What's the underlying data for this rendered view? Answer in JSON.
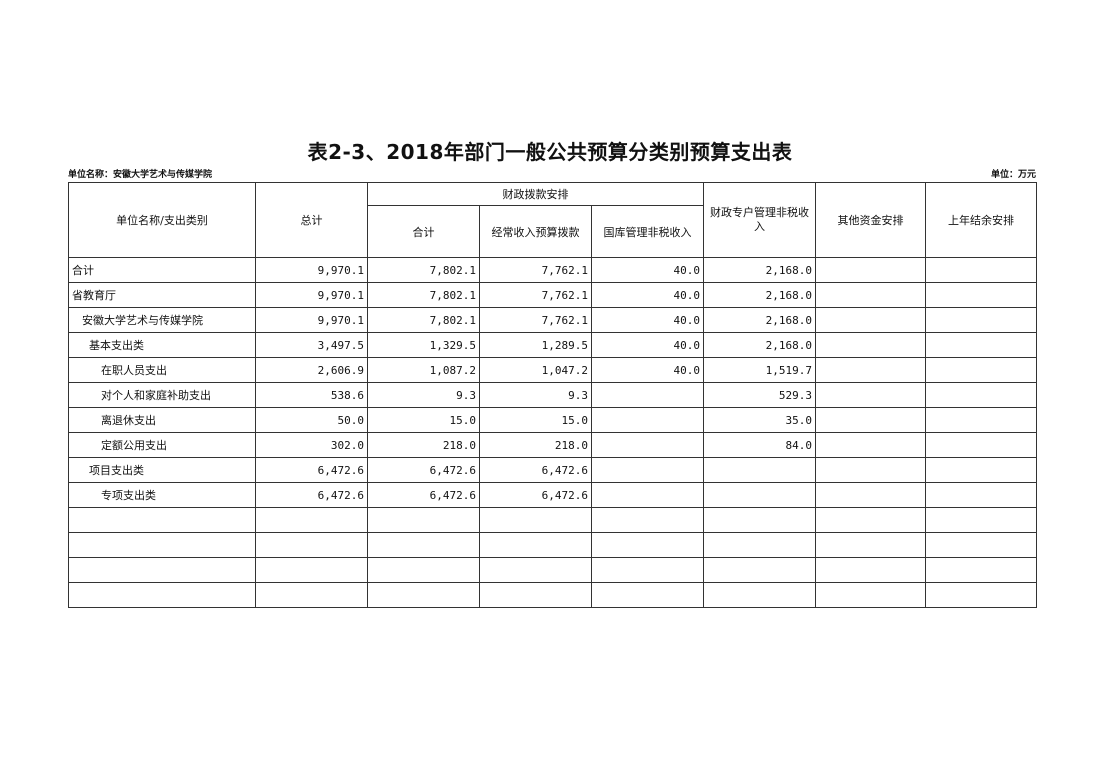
{
  "title": "表2-3、2018年部门一般公共预算分类别预算支出表",
  "unit_name": "单位名称：安徽大学艺术与传媒学院",
  "unit": "单位：万元",
  "headers": {
    "category": "单位名称/支出类别",
    "total": "总计",
    "fiscal_group": "财政拨款安排",
    "fiscal_subtotal": "合计",
    "regular_income": "经常收入预算拨款",
    "treasury_nontax": "国库管理非税收入",
    "special_nontax": "财政专户管理非税收入",
    "other_funds": "其他资金安排",
    "prior_year": "上年结余安排"
  },
  "rows": [
    {
      "name": "合计",
      "level": 0,
      "total": "9,970.1",
      "subtotal": "7,802.1",
      "regular": "7,762.1",
      "treasury": "40.0",
      "special": "2,168.0",
      "other": "",
      "prior": ""
    },
    {
      "name": "省教育厅",
      "level": 0,
      "total": "9,970.1",
      "subtotal": "7,802.1",
      "regular": "7,762.1",
      "treasury": "40.0",
      "special": "2,168.0",
      "other": "",
      "prior": ""
    },
    {
      "name": "安徽大学艺术与传媒学院",
      "level": 1,
      "total": "9,970.1",
      "subtotal": "7,802.1",
      "regular": "7,762.1",
      "treasury": "40.0",
      "special": "2,168.0",
      "other": "",
      "prior": ""
    },
    {
      "name": "基本支出类",
      "level": 2,
      "total": "3,497.5",
      "subtotal": "1,329.5",
      "regular": "1,289.5",
      "treasury": "40.0",
      "special": "2,168.0",
      "other": "",
      "prior": ""
    },
    {
      "name": "在职人员支出",
      "level": 3,
      "total": "2,606.9",
      "subtotal": "1,087.2",
      "regular": "1,047.2",
      "treasury": "40.0",
      "special": "1,519.7",
      "other": "",
      "prior": ""
    },
    {
      "name": "对个人和家庭补助支出",
      "level": 3,
      "total": "538.6",
      "subtotal": "9.3",
      "regular": "9.3",
      "treasury": "",
      "special": "529.3",
      "other": "",
      "prior": ""
    },
    {
      "name": "离退休支出",
      "level": 3,
      "total": "50.0",
      "subtotal": "15.0",
      "regular": "15.0",
      "treasury": "",
      "special": "35.0",
      "other": "",
      "prior": ""
    },
    {
      "name": "定额公用支出",
      "level": 3,
      "total": "302.0",
      "subtotal": "218.0",
      "regular": "218.0",
      "treasury": "",
      "special": "84.0",
      "other": "",
      "prior": ""
    },
    {
      "name": "项目支出类",
      "level": 2,
      "total": "6,472.6",
      "subtotal": "6,472.6",
      "regular": "6,472.6",
      "treasury": "",
      "special": "",
      "other": "",
      "prior": ""
    },
    {
      "name": "专项支出类",
      "level": 3,
      "total": "6,472.6",
      "subtotal": "6,472.6",
      "regular": "6,472.6",
      "treasury": "",
      "special": "",
      "other": "",
      "prior": ""
    },
    {
      "name": "",
      "level": 0,
      "total": "",
      "subtotal": "",
      "regular": "",
      "treasury": "",
      "special": "",
      "other": "",
      "prior": ""
    },
    {
      "name": "",
      "level": 0,
      "total": "",
      "subtotal": "",
      "regular": "",
      "treasury": "",
      "special": "",
      "other": "",
      "prior": ""
    },
    {
      "name": "",
      "level": 0,
      "total": "",
      "subtotal": "",
      "regular": "",
      "treasury": "",
      "special": "",
      "other": "",
      "prior": ""
    },
    {
      "name": "",
      "level": 0,
      "total": "",
      "subtotal": "",
      "regular": "",
      "treasury": "",
      "special": "",
      "other": "",
      "prior": ""
    }
  ]
}
